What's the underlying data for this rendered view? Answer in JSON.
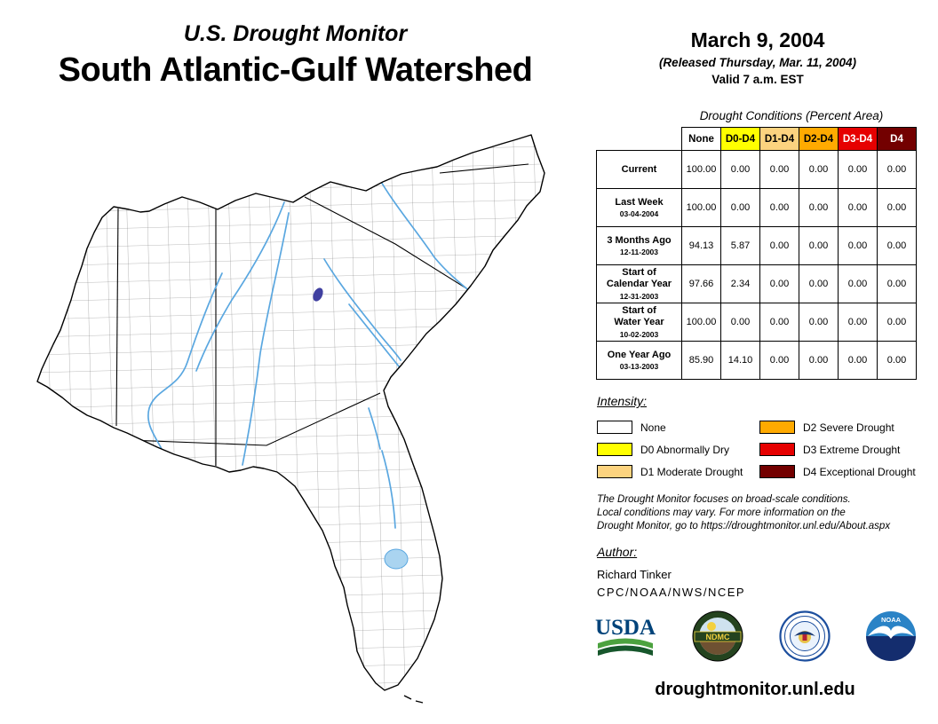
{
  "header": {
    "program": "U.S. Drought Monitor",
    "title": "South Atlantic-Gulf Watershed",
    "date": "March 9, 2004",
    "released": "(Released Thursday, Mar. 11, 2004)",
    "valid": "Valid 7 a.m. EST"
  },
  "table": {
    "title": "Drought Conditions (Percent Area)",
    "columns": [
      {
        "label": "None",
        "bg": "#FFFFFF",
        "fg": "#000000"
      },
      {
        "label": "D0-D4",
        "bg": "#FFFF00",
        "fg": "#000000"
      },
      {
        "label": "D1-D4",
        "bg": "#FCD37F",
        "fg": "#000000"
      },
      {
        "label": "D2-D4",
        "bg": "#FFAA00",
        "fg": "#000000"
      },
      {
        "label": "D3-D4",
        "bg": "#E60000",
        "fg": "#FFFFFF"
      },
      {
        "label": "D4",
        "bg": "#730000",
        "fg": "#FFFFFF"
      }
    ],
    "rows": [
      {
        "label": "Current",
        "date": "",
        "values": [
          "100.00",
          "0.00",
          "0.00",
          "0.00",
          "0.00",
          "0.00"
        ]
      },
      {
        "label": "Last Week",
        "date": "03-04-2004",
        "values": [
          "100.00",
          "0.00",
          "0.00",
          "0.00",
          "0.00",
          "0.00"
        ]
      },
      {
        "label": "3 Months Ago",
        "date": "12-11-2003",
        "values": [
          "94.13",
          "5.87",
          "0.00",
          "0.00",
          "0.00",
          "0.00"
        ]
      },
      {
        "label": "Start of\nCalendar Year",
        "date": "12-31-2003",
        "values": [
          "97.66",
          "2.34",
          "0.00",
          "0.00",
          "0.00",
          "0.00"
        ]
      },
      {
        "label": "Start of\nWater Year",
        "date": "10-02-2003",
        "values": [
          "100.00",
          "0.00",
          "0.00",
          "0.00",
          "0.00",
          "0.00"
        ]
      },
      {
        "label": "One Year Ago",
        "date": "03-13-2003",
        "values": [
          "85.90",
          "14.10",
          "0.00",
          "0.00",
          "0.00",
          "0.00"
        ]
      }
    ]
  },
  "legend": {
    "title": "Intensity:",
    "items": [
      {
        "label": "None",
        "color": "#FFFFFF"
      },
      {
        "label": "D0 Abnormally Dry",
        "color": "#FFFF00"
      },
      {
        "label": "D1 Moderate Drought",
        "color": "#FCD37F"
      },
      {
        "label": "D2 Severe Drought",
        "color": "#FFAA00"
      },
      {
        "label": "D3 Extreme Drought",
        "color": "#E60000"
      },
      {
        "label": "D4 Exceptional Drought",
        "color": "#730000"
      }
    ]
  },
  "disclaimer": {
    "lines": [
      "The Drought Monitor focuses on broad-scale conditions.",
      "Local conditions may vary. For more information on the",
      "Drought Monitor, go to https://droughtmonitor.unl.edu/About.aspx"
    ]
  },
  "author": {
    "heading": "Author:",
    "name": "Richard Tinker",
    "org": "CPC/NOAA/NWS/NCEP"
  },
  "logos": {
    "usda": "USDA",
    "ndmc": "NDMC",
    "noaa": "NOAA"
  },
  "footer": {
    "url": "droughtmonitor.unl.edu"
  }
}
